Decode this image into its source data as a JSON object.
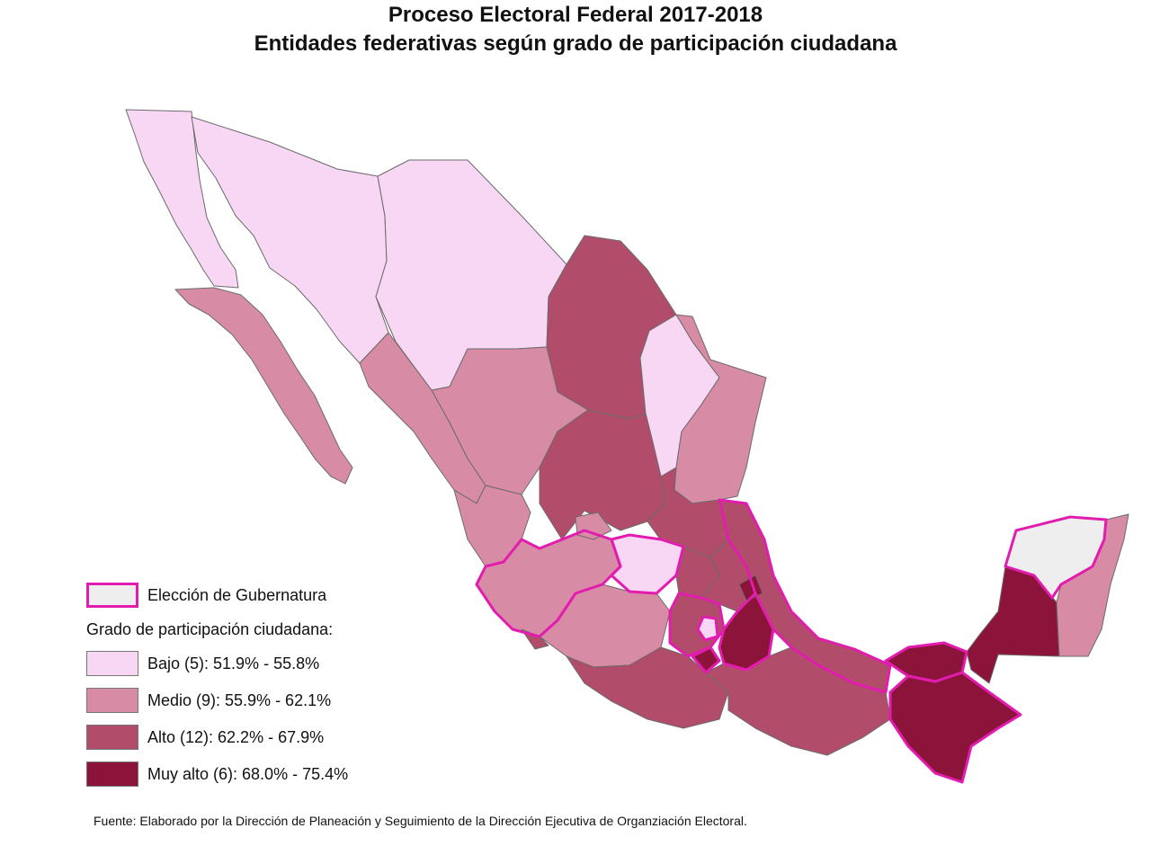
{
  "title_line1": "Proceso Electoral Federal 2017-2018",
  "title_line2": "Entidades federativas según grado de participación ciudadana",
  "legend": {
    "governor_label": "Elección de Gubernatura",
    "heading": "Grado de participación ciudadana:",
    "classes": [
      {
        "label": "Bajo (5): 51.9% - 55.8%",
        "color": "#f8d7f4"
      },
      {
        "label": "Medio (9): 55.9% - 62.1%",
        "color": "#d88ba5"
      },
      {
        "label": "Alto (12): 62.2% - 67.9%",
        "color": "#b14d6a"
      },
      {
        "label": "Muy alto (6): 68.0% - 75.4%",
        "color": "#8c1339"
      }
    ]
  },
  "colors": {
    "bajo": "#f8d7f4",
    "medio": "#d88ba5",
    "alto": "#b14d6a",
    "muy_alto": "#8c1339",
    "governor_outline": "#e21cae",
    "no_class": "#eeeeee",
    "border": "#666666"
  },
  "source": "Fuente: Elaborado por la Dirección de Planeación y Seguimiento de la Dirección Ejecutiva de Organziación Electoral."
}
